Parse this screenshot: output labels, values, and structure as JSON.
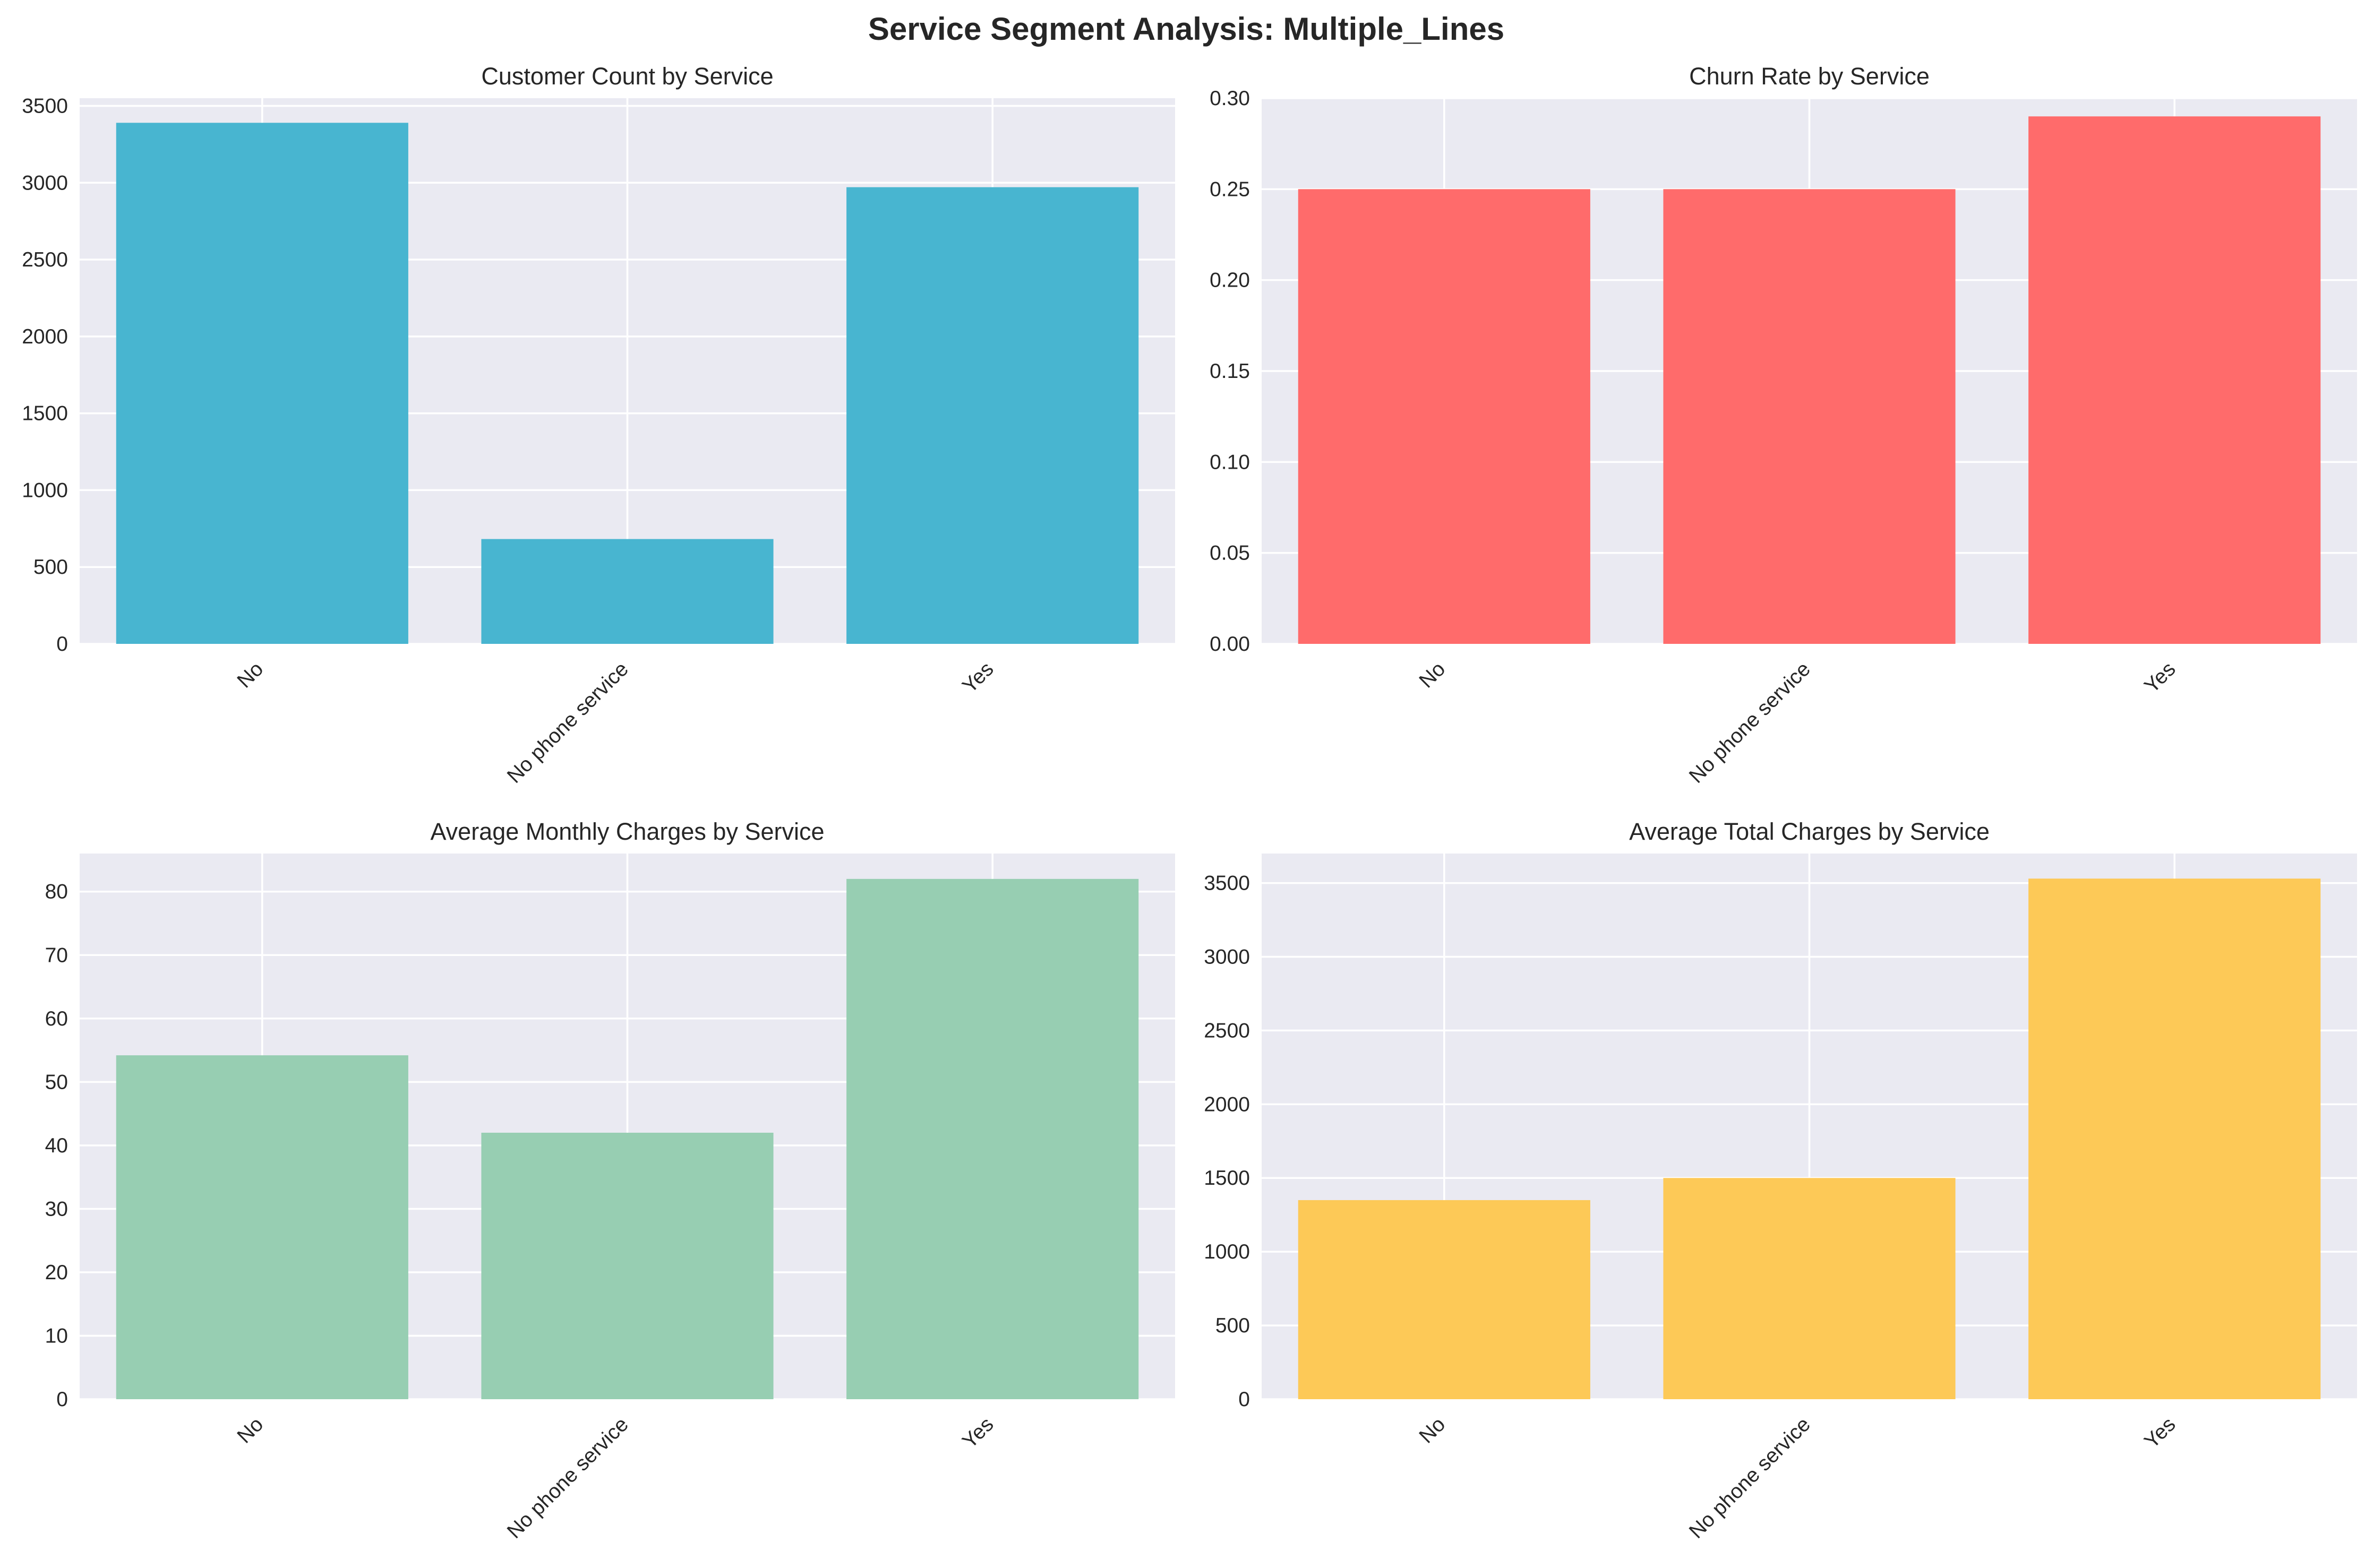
{
  "figure": {
    "title": "Service Segment Analysis: Multiple_Lines"
  },
  "chart_data": [
    {
      "type": "bar",
      "title": "Customer Count by Service",
      "categories": [
        "No",
        "No phone service",
        "Yes"
      ],
      "values": [
        3390,
        682,
        2971
      ],
      "ylim": [
        0,
        3550
      ],
      "yticks": [
        0,
        500,
        1000,
        1500,
        2000,
        2500,
        3000,
        3500
      ],
      "tick_decimals": 0,
      "color": "#48b5d0",
      "grid": true,
      "xlabel": "",
      "ylabel": ""
    },
    {
      "type": "bar",
      "title": "Churn Rate by Service",
      "categories": [
        "No",
        "No phone service",
        "Yes"
      ],
      "values": [
        0.25,
        0.25,
        0.29
      ],
      "ylim": [
        0,
        0.3
      ],
      "yticks": [
        0,
        0.05,
        0.1,
        0.15,
        0.2,
        0.25,
        0.3
      ],
      "tick_decimals": 2,
      "color": "#ff6b6b",
      "grid": true,
      "xlabel": "",
      "ylabel": ""
    },
    {
      "type": "bar",
      "title": "Average Monthly Charges by Service",
      "categories": [
        "No",
        "No phone service",
        "Yes"
      ],
      "values": [
        54.2,
        42.0,
        82.0
      ],
      "ylim": [
        0,
        86
      ],
      "yticks": [
        0,
        10,
        20,
        30,
        40,
        50,
        60,
        70,
        80
      ],
      "tick_decimals": 0,
      "color": "#97ceb2",
      "grid": true,
      "xlabel": "",
      "ylabel": ""
    },
    {
      "type": "bar",
      "title": "Average Total Charges by Service",
      "categories": [
        "No",
        "No phone service",
        "Yes"
      ],
      "values": [
        1350,
        1500,
        3530
      ],
      "ylim": [
        0,
        3700
      ],
      "yticks": [
        0,
        500,
        1000,
        1500,
        2000,
        2500,
        3000,
        3500
      ],
      "tick_decimals": 0,
      "color": "#fdc957",
      "grid": true,
      "xlabel": "",
      "ylabel": ""
    }
  ]
}
